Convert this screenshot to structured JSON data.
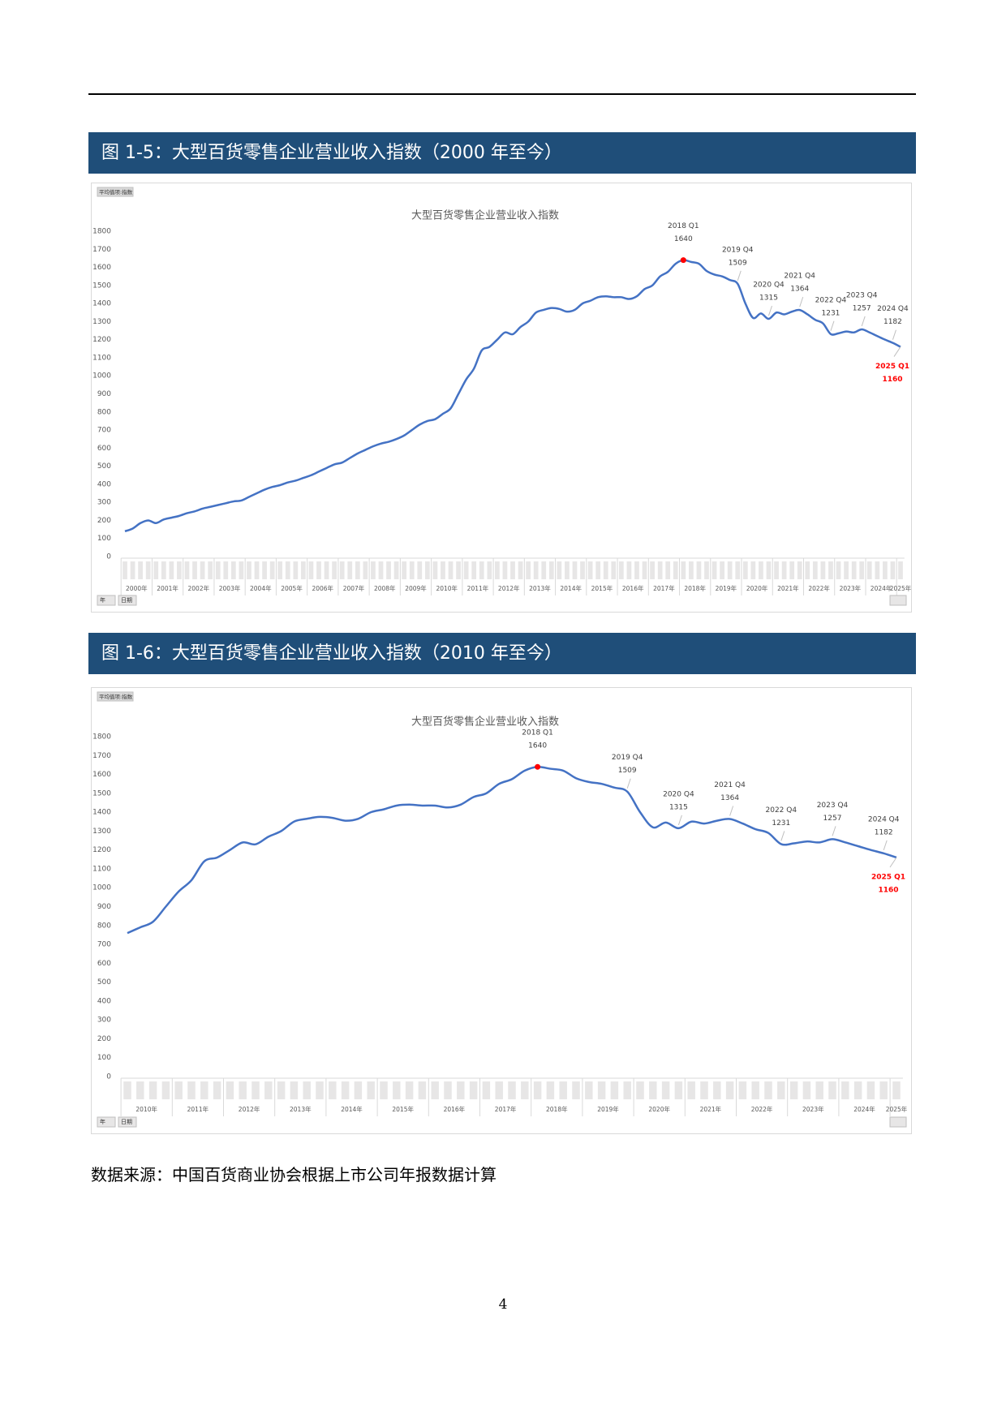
{
  "captions": [
    "图 1-5：大型百货零售企业营业收入指数（2000 年至今）",
    "图 1-6：大型百货零售企业营业收入指数（2010 年至今）"
  ],
  "chart_data": [
    {
      "type": "line",
      "title": "大型百货零售企业营业收入指数",
      "field_button": "平均值项:指数",
      "filter_buttons": [
        "年",
        "日期"
      ],
      "color": "#4472c4",
      "categories": [
        "2000年",
        null,
        null,
        null,
        "2001年",
        null,
        null,
        null,
        "2002年",
        null,
        null,
        null,
        "2003年",
        null,
        null,
        null,
        "2004年",
        null,
        null,
        null,
        "2005年",
        null,
        null,
        null,
        "2006年",
        null,
        null,
        null,
        "2007年",
        null,
        null,
        null,
        "2008年",
        null,
        null,
        null,
        "2009年",
        null,
        null,
        null,
        "2010年",
        null,
        null,
        null,
        "2011年",
        null,
        null,
        null,
        "2012年",
        null,
        null,
        null,
        "2013年",
        null,
        null,
        null,
        "2014年",
        null,
        null,
        null,
        "2015年",
        null,
        null,
        null,
        "2016年",
        null,
        null,
        null,
        "2017年",
        null,
        null,
        null,
        "2018年",
        null,
        null,
        null,
        "2019年",
        null,
        null,
        null,
        "2020年",
        null,
        null,
        null,
        "2021年",
        null,
        null,
        null,
        "2022年",
        null,
        null,
        null,
        "2023年",
        null,
        null,
        null,
        "2024年",
        null,
        null,
        null,
        "2025年"
      ],
      "values": [
        140,
        155,
        185,
        200,
        185,
        205,
        215,
        225,
        240,
        250,
        265,
        275,
        285,
        295,
        305,
        310,
        330,
        350,
        370,
        385,
        395,
        410,
        420,
        435,
        450,
        470,
        490,
        510,
        520,
        545,
        570,
        590,
        610,
        625,
        635,
        650,
        670,
        700,
        730,
        750,
        760,
        790,
        820,
        900,
        980,
        1040,
        1140,
        1160,
        1200,
        1240,
        1230,
        1270,
        1300,
        1350,
        1365,
        1375,
        1370,
        1355,
        1365,
        1400,
        1415,
        1435,
        1440,
        1435,
        1435,
        1425,
        1440,
        1480,
        1500,
        1550,
        1575,
        1620,
        1640,
        1630,
        1620,
        1580,
        1560,
        1550,
        1530,
        1509,
        1400,
        1320,
        1345,
        1315,
        1350,
        1340,
        1355,
        1364,
        1340,
        1310,
        1290,
        1231,
        1235,
        1245,
        1240,
        1257,
        1240,
        1220,
        1200,
        1182,
        1160
      ],
      "ylim": [
        0,
        1800
      ],
      "yticks": [
        0,
        100,
        200,
        300,
        400,
        500,
        600,
        700,
        800,
        900,
        1000,
        1100,
        1200,
        1300,
        1400,
        1500,
        1600,
        1700,
        1800
      ],
      "annotations": [
        {
          "label": "2018 Q1",
          "value": 1640,
          "color": "#ff0000"
        },
        {
          "label": "2019 Q4",
          "value": 1509
        },
        {
          "label": "2020 Q4",
          "value": 1315
        },
        {
          "label": "2021 Q4",
          "value": 1364
        },
        {
          "label": "2022 Q4",
          "value": 1231
        },
        {
          "label": "2023 Q4",
          "value": 1257
        },
        {
          "label": "2024 Q4",
          "value": 1182
        },
        {
          "label": "2025 Q1",
          "value": 1160,
          "color": "#ff0000"
        }
      ]
    },
    {
      "type": "line",
      "title": "大型百货零售企业营业收入指数",
      "field_button": "平均值项:指数",
      "filter_buttons": [
        "年",
        "日期"
      ],
      "color": "#4472c4",
      "categories": [
        "2010年",
        null,
        null,
        null,
        "2011年",
        null,
        null,
        null,
        "2012年",
        null,
        null,
        null,
        "2013年",
        null,
        null,
        null,
        "2014年",
        null,
        null,
        null,
        "2015年",
        null,
        null,
        null,
        "2016年",
        null,
        null,
        null,
        "2017年",
        null,
        null,
        null,
        "2018年",
        null,
        null,
        null,
        "2019年",
        null,
        null,
        null,
        "2020年",
        null,
        null,
        null,
        "2021年",
        null,
        null,
        null,
        "2022年",
        null,
        null,
        null,
        "2023年",
        null,
        null,
        null,
        "2024年",
        null,
        null,
        null,
        "2025年"
      ],
      "values": [
        760,
        790,
        820,
        900,
        980,
        1040,
        1140,
        1160,
        1200,
        1240,
        1230,
        1270,
        1300,
        1350,
        1365,
        1375,
        1370,
        1355,
        1365,
        1400,
        1415,
        1435,
        1440,
        1435,
        1435,
        1425,
        1440,
        1480,
        1500,
        1550,
        1575,
        1620,
        1640,
        1630,
        1620,
        1580,
        1560,
        1550,
        1530,
        1509,
        1400,
        1320,
        1345,
        1315,
        1350,
        1340,
        1355,
        1364,
        1340,
        1310,
        1290,
        1231,
        1235,
        1245,
        1240,
        1257,
        1240,
        1220,
        1200,
        1182,
        1160
      ],
      "ylim": [
        0,
        1800
      ],
      "yticks": [
        0,
        100,
        200,
        300,
        400,
        500,
        600,
        700,
        800,
        900,
        1000,
        1100,
        1200,
        1300,
        1400,
        1500,
        1600,
        1700,
        1800
      ],
      "annotations": [
        {
          "label": "2018 Q1",
          "value": 1640,
          "color": "#ff0000"
        },
        {
          "label": "2019 Q4",
          "value": 1509
        },
        {
          "label": "2020 Q4",
          "value": 1315
        },
        {
          "label": "2021 Q4",
          "value": 1364
        },
        {
          "label": "2022 Q4",
          "value": 1231
        },
        {
          "label": "2023 Q4",
          "value": 1257
        },
        {
          "label": "2024 Q4",
          "value": 1182
        },
        {
          "label": "2025 Q1",
          "value": 1160,
          "color": "#ff0000"
        }
      ]
    }
  ],
  "source": "数据来源：中国百货商业协会根据上市公司年报数据计算",
  "page_number": "4"
}
